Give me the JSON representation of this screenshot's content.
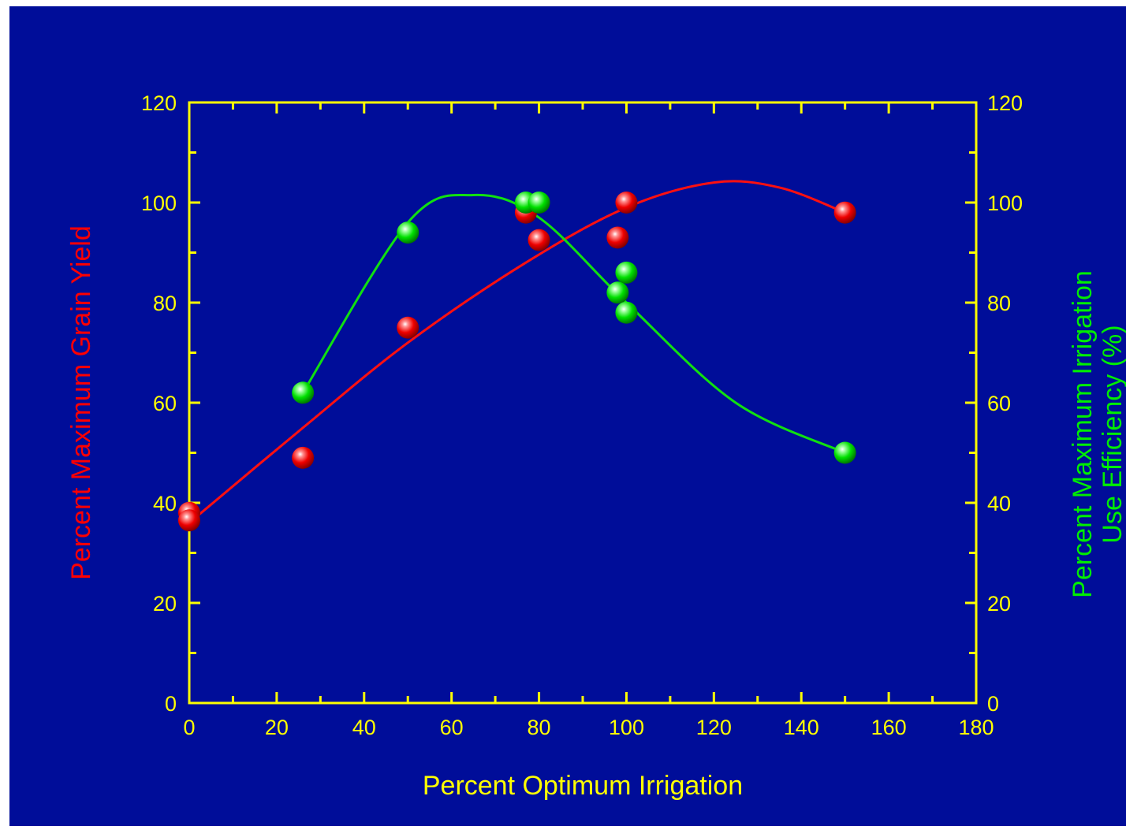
{
  "chart_data": {
    "type": "scatter",
    "xlabel": "Percent Optimum Irrigation",
    "ylabel": {
      "parts": [
        {
          "text": "Percent Maximum ",
          "color": "#ff0000"
        },
        {
          "text": "Grain Yield",
          "color": "#ff0000"
        }
      ]
    },
    "y2label": {
      "lines": [
        "Percent Maximum Irrigation",
        "Use Efficiency (%)"
      ],
      "color": "#00ee00"
    },
    "xlim": [
      0,
      180
    ],
    "ylim": [
      0,
      120
    ],
    "y2lim": [
      0,
      120
    ],
    "xticks": [
      0,
      20,
      40,
      60,
      80,
      100,
      120,
      140,
      160,
      180
    ],
    "yticks": [
      0,
      20,
      40,
      60,
      80,
      100,
      120
    ],
    "grid": false,
    "series": [
      {
        "color": "#ff1010",
        "axis": "left",
        "points": [
          [
            0,
            38
          ],
          [
            0,
            36.5
          ],
          [
            26,
            49
          ],
          [
            50,
            75
          ],
          [
            77,
            98
          ],
          [
            80,
            92.5
          ],
          [
            98,
            93
          ],
          [
            100,
            100
          ],
          [
            150,
            98
          ]
        ],
        "curve": [
          [
            0,
            36
          ],
          [
            26,
            55
          ],
          [
            50,
            72
          ],
          [
            77,
            88
          ],
          [
            100,
            99
          ],
          [
            120,
            104
          ],
          [
            135,
            103
          ],
          [
            150,
            98
          ]
        ]
      },
      {
        "color": "#10e010",
        "axis": "right",
        "points": [
          [
            26,
            62
          ],
          [
            50,
            94
          ],
          [
            77,
            100
          ],
          [
            80,
            100
          ],
          [
            98,
            82
          ],
          [
            100,
            86
          ],
          [
            100,
            78
          ],
          [
            150,
            50
          ]
        ],
        "curve": [
          [
            26,
            62
          ],
          [
            50,
            96
          ],
          [
            65,
            101.5
          ],
          [
            80,
            97
          ],
          [
            100,
            80
          ],
          [
            125,
            60
          ],
          [
            150,
            50
          ]
        ]
      }
    ]
  },
  "colors": {
    "background": "#000d99",
    "axis": "#ffff00"
  }
}
